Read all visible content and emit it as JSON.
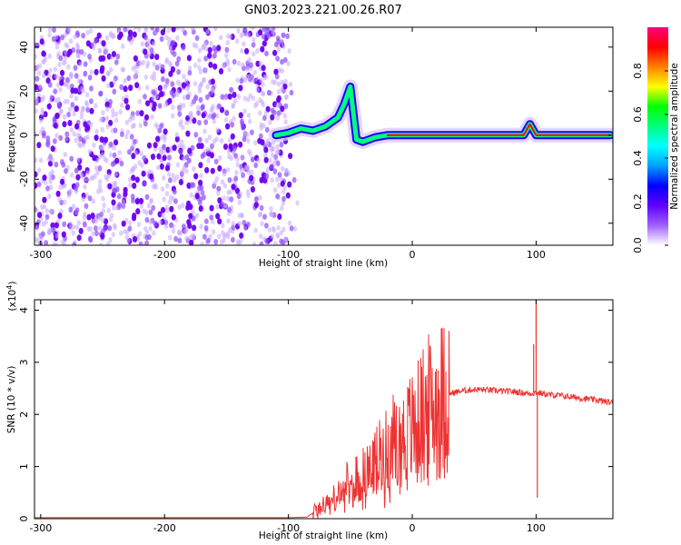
{
  "chart_data": [
    {
      "type": "heatmap",
      "title": "GN03.2023.221.00.26.R07",
      "xlabel": "Height of straight line (km)",
      "ylabel": "Frequency (Hz)",
      "xlim": [
        -305,
        162
      ],
      "ylim": [
        -50,
        49
      ],
      "x_ticks": [
        -300,
        -200,
        -100,
        0,
        100
      ],
      "y_ticks": [
        -40,
        -20,
        0,
        20,
        40
      ],
      "colorbar": {
        "label": "Normalized spectral amplitude",
        "range": [
          0,
          1
        ],
        "ticks": [
          0.0,
          0.2,
          0.4,
          0.6,
          0.8
        ],
        "tick_labels": [
          "0.0",
          "0.2",
          "0.4",
          "0.6",
          "0.8"
        ],
        "colormap": [
          "#ffffff",
          "#a060ff",
          "#6000ff",
          "#0000ff",
          "#00a0ff",
          "#00ffff",
          "#00ff80",
          "#00ff00",
          "#ffff00",
          "#ff8000",
          "#ff0000",
          "#ff0080"
        ]
      },
      "noise_region_x": [
        -305,
        -100
      ],
      "signal_track": [
        {
          "x": -110,
          "y": 0
        },
        {
          "x": -100,
          "y": 1
        },
        {
          "x": -90,
          "y": 3
        },
        {
          "x": -80,
          "y": 2
        },
        {
          "x": -70,
          "y": 4
        },
        {
          "x": -60,
          "y": 8
        },
        {
          "x": -55,
          "y": 14
        },
        {
          "x": -50,
          "y": 22
        },
        {
          "x": -45,
          "y": -2
        },
        {
          "x": -40,
          "y": -3
        },
        {
          "x": -30,
          "y": -1
        },
        {
          "x": -20,
          "y": 0
        },
        {
          "x": 0,
          "y": 0
        },
        {
          "x": 50,
          "y": 0
        },
        {
          "x": 90,
          "y": 0
        },
        {
          "x": 95,
          "y": 5
        },
        {
          "x": 100,
          "y": 0
        },
        {
          "x": 160,
          "y": 0
        }
      ]
    },
    {
      "type": "line",
      "xlabel": "Height of straight line (km)",
      "ylabel": "SNR (10 * v/v)",
      "multiplier_label": "(x10",
      "multiplier_exponent": "4",
      "multiplier_close": ")",
      "xlim": [
        -305,
        162
      ],
      "ylim": [
        0,
        4.2
      ],
      "x_ticks": [
        -300,
        -200,
        -100,
        0,
        100
      ],
      "y_ticks": [
        0,
        1,
        2,
        3,
        4
      ],
      "series": [
        {
          "color": "#ee3333",
          "x": [
            -305,
            -250,
            -200,
            -150,
            -100,
            -85,
            -78,
            -72,
            -68,
            -64,
            -60,
            -56,
            -52,
            -48,
            -44,
            -40,
            -36,
            -32,
            -28,
            -24,
            -20,
            -16,
            -12,
            -8,
            -4,
            0,
            5,
            10,
            15,
            20,
            25,
            30,
            40,
            50,
            60,
            70,
            80,
            88,
            95,
            100,
            110,
            120,
            130,
            140,
            150,
            162
          ],
          "y": [
            0.02,
            0.02,
            0.02,
            0.02,
            0.02,
            0.03,
            0.15,
            0.25,
            0.3,
            0.35,
            0.4,
            0.5,
            0.55,
            0.6,
            0.7,
            0.75,
            0.85,
            0.95,
            1.05,
            1.15,
            1.25,
            1.35,
            1.45,
            1.5,
            1.6,
            1.7,
            1.85,
            2.0,
            2.1,
            2.2,
            2.3,
            2.4,
            2.45,
            2.48,
            2.47,
            2.45,
            2.44,
            2.42,
            2.4,
            2.42,
            2.38,
            2.36,
            2.33,
            2.3,
            2.27,
            2.22
          ]
        }
      ],
      "spikes": [
        {
          "x": 98,
          "y": 3.35
        },
        {
          "x": 100,
          "y": 4.2
        },
        {
          "x": 101,
          "y": 0.4
        }
      ]
    }
  ]
}
